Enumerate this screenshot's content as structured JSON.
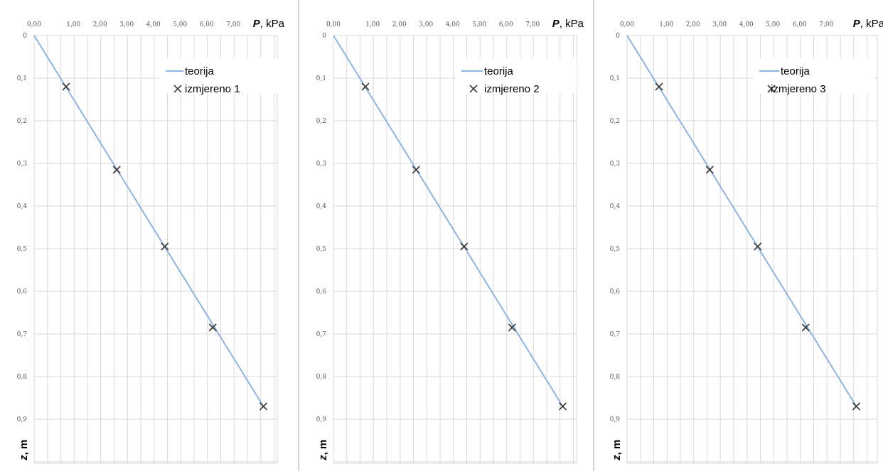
{
  "chart_data": [
    {
      "type": "scatter",
      "x_axis": {
        "label_symbol": "P",
        "label_unit": "kPa",
        "position": "top",
        "range": [
          0,
          8.5
        ],
        "ticks": [
          "0,00",
          "1,00",
          "2,00",
          "3,00",
          "4,00",
          "5,00",
          "6,00",
          "7,00"
        ]
      },
      "y_axis": {
        "label_symbol": "z",
        "label_unit": "m",
        "inverted": true,
        "range": [
          0,
          1.0
        ],
        "ticks": [
          "0",
          "0,1",
          "0,2",
          "0,3",
          "0,4",
          "0,5",
          "0,6",
          "0,7",
          "0,8",
          "0,9"
        ]
      },
      "grid": true,
      "legend": {
        "placement": "top-right"
      },
      "series": [
        {
          "name": "teorija",
          "kind": "line",
          "color": "#8db4e2",
          "points": [
            [
              0,
              0
            ],
            [
              8.6,
              0.87
            ]
          ]
        },
        {
          "name": "izmjereno 1",
          "kind": "marker",
          "marker": "x",
          "color": "#3a3a3a",
          "points": [
            [
              1.2,
              0.12
            ],
            [
              3.1,
              0.315
            ],
            [
              4.9,
              0.495
            ],
            [
              6.7,
              0.685
            ],
            [
              8.6,
              0.87
            ]
          ]
        }
      ]
    },
    {
      "type": "scatter",
      "x_axis": {
        "label_symbol": "P",
        "label_unit": "kPa",
        "position": "top",
        "range": [
          0,
          8.5
        ],
        "ticks": [
          "0,00",
          "1,00",
          "2,00",
          "3,00",
          "4,00",
          "5,00",
          "6,00",
          "7,00"
        ]
      },
      "y_axis": {
        "label_symbol": "z",
        "label_unit": "m",
        "inverted": true,
        "range": [
          0,
          1.0
        ],
        "ticks": [
          "0",
          "0,1",
          "0,2",
          "0,3",
          "0,4",
          "0,5",
          "0,6",
          "0,7",
          "0,8",
          "0,9"
        ]
      },
      "grid": true,
      "legend": {
        "placement": "top-right"
      },
      "series": [
        {
          "name": "teorija",
          "kind": "line",
          "color": "#8db4e2",
          "points": [
            [
              0,
              0
            ],
            [
              8.6,
              0.87
            ]
          ]
        },
        {
          "name": "izmjereno 2",
          "kind": "marker",
          "marker": "x",
          "color": "#3a3a3a",
          "points": [
            [
              1.2,
              0.12
            ],
            [
              3.1,
              0.315
            ],
            [
              4.9,
              0.495
            ],
            [
              6.7,
              0.685
            ],
            [
              8.6,
              0.87
            ]
          ]
        }
      ]
    },
    {
      "type": "scatter",
      "x_axis": {
        "label_symbol": "P",
        "label_unit": "kPa",
        "position": "top",
        "range": [
          0,
          8.5
        ],
        "ticks": [
          "0,00",
          "1,00",
          "2,00",
          "3,00",
          "4,00",
          "5,00",
          "6,00",
          "7,00"
        ]
      },
      "y_axis": {
        "label_symbol": "z",
        "label_unit": "m",
        "inverted": true,
        "range": [
          0,
          1.0
        ],
        "ticks": [
          "0",
          "0,1",
          "0,2",
          "0,3",
          "0,4",
          "0,5",
          "0,6",
          "0,7",
          "0,8",
          "0,9"
        ]
      },
      "grid": true,
      "legend": {
        "placement": "top-right"
      },
      "series": [
        {
          "name": "teorija",
          "kind": "line",
          "color": "#8db4e2",
          "points": [
            [
              0,
              0
            ],
            [
              8.6,
              0.87
            ]
          ]
        },
        {
          "name": "izmjereno 3",
          "kind": "marker",
          "marker": "x",
          "color": "#3a3a3a",
          "points": [
            [
              1.2,
              0.12
            ],
            [
              3.1,
              0.315
            ],
            [
              4.9,
              0.495
            ],
            [
              6.7,
              0.685
            ],
            [
              8.6,
              0.87
            ]
          ]
        }
      ]
    }
  ]
}
